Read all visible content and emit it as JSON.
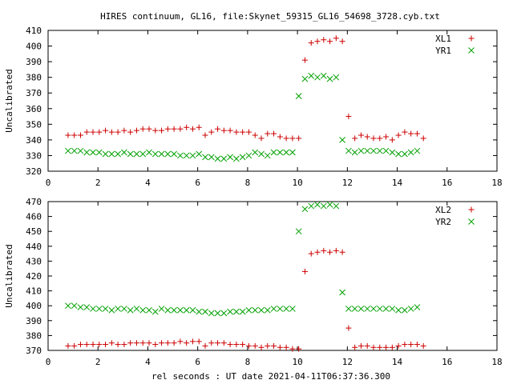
{
  "title": "HIRES continuum, GL16, file:Skynet_59315_GL16_54698_3728.cyb.txt",
  "xlabel": "rel seconds : UT date 2021-04-11T06:37:36.300",
  "chart_data": [
    {
      "type": "scatter",
      "ylabel": "Uncalibrated",
      "xlim": [
        0,
        18
      ],
      "ylim": [
        320,
        410
      ],
      "xticks": [
        0,
        2,
        4,
        6,
        8,
        10,
        12,
        14,
        16,
        18
      ],
      "yticks": [
        320,
        330,
        340,
        350,
        360,
        370,
        380,
        390,
        400,
        410
      ],
      "legend_position": "top-right",
      "x": [
        0.8,
        1.05,
        1.3,
        1.55,
        1.8,
        2.05,
        2.3,
        2.55,
        2.8,
        3.05,
        3.3,
        3.55,
        3.8,
        4.05,
        4.3,
        4.55,
        4.8,
        5.05,
        5.3,
        5.55,
        5.8,
        6.05,
        6.3,
        6.55,
        6.8,
        7.05,
        7.3,
        7.55,
        7.8,
        8.05,
        8.3,
        8.55,
        8.8,
        9.05,
        9.3,
        9.55,
        9.8,
        10.05,
        10.3,
        10.55,
        10.8,
        11.05,
        11.3,
        11.55,
        11.8,
        12.05,
        12.3,
        12.55,
        12.8,
        13.05,
        13.3,
        13.55,
        13.8,
        14.05,
        14.3,
        14.55,
        14.8,
        15.05,
        15.3,
        15.55,
        15.8,
        16.05,
        16.3,
        16.55,
        16.8
      ],
      "series": [
        {
          "name": "XL1",
          "marker": "plus",
          "color": "#cc0000",
          "values": [
            343,
            343,
            343,
            345,
            345,
            345,
            346,
            345,
            345,
            346,
            345,
            346,
            347,
            347,
            346,
            346,
            347,
            347,
            347,
            348,
            347,
            348,
            343,
            345,
            347,
            346,
            346,
            345,
            345,
            345,
            343,
            341,
            344,
            344,
            342,
            341,
            341,
            341,
            391,
            402,
            403,
            404,
            403,
            405,
            403,
            355,
            341,
            343,
            342,
            341,
            341,
            342,
            340,
            343,
            345,
            344,
            344,
            341,
            null,
            null,
            null,
            null,
            null,
            null,
            null
          ]
        },
        {
          "name": "YR1",
          "marker": "cross",
          "color": "#00a000",
          "values": [
            333,
            333,
            333,
            332,
            332,
            332,
            331,
            331,
            331,
            332,
            331,
            331,
            331,
            332,
            331,
            331,
            331,
            331,
            330,
            330,
            330,
            331,
            329,
            329,
            328,
            328,
            329,
            328,
            329,
            330,
            332,
            331,
            330,
            332,
            332,
            332,
            332,
            368,
            379,
            381,
            380,
            381,
            379,
            380,
            340,
            333,
            332,
            333,
            333,
            333,
            333,
            333,
            332,
            331,
            331,
            332,
            333,
            null,
            null,
            null,
            null,
            null,
            null,
            null,
            null
          ]
        }
      ]
    },
    {
      "type": "scatter",
      "ylabel": "Uncalibrated",
      "xlim": [
        0,
        18
      ],
      "ylim": [
        370,
        470
      ],
      "xticks": [
        0,
        2,
        4,
        6,
        8,
        10,
        12,
        14,
        16,
        18
      ],
      "yticks": [
        370,
        380,
        390,
        400,
        410,
        420,
        430,
        440,
        450,
        460,
        470
      ],
      "legend_position": "top-right",
      "x": [
        0.8,
        1.05,
        1.3,
        1.55,
        1.8,
        2.05,
        2.3,
        2.55,
        2.8,
        3.05,
        3.3,
        3.55,
        3.8,
        4.05,
        4.3,
        4.55,
        4.8,
        5.05,
        5.3,
        5.55,
        5.8,
        6.05,
        6.3,
        6.55,
        6.8,
        7.05,
        7.3,
        7.55,
        7.8,
        8.05,
        8.3,
        8.55,
        8.8,
        9.05,
        9.3,
        9.55,
        9.8,
        10.05,
        10.3,
        10.55,
        10.8,
        11.05,
        11.3,
        11.55,
        11.8,
        12.05,
        12.3,
        12.55,
        12.8,
        13.05,
        13.3,
        13.55,
        13.8,
        14.05,
        14.3,
        14.55,
        14.8,
        15.05,
        15.3,
        15.55,
        15.8,
        16.05,
        16.3,
        16.55,
        16.8
      ],
      "series": [
        {
          "name": "XL2",
          "marker": "plus",
          "color": "#cc0000",
          "values": [
            373,
            373,
            374,
            374,
            374,
            374,
            374,
            375,
            374,
            374,
            375,
            375,
            375,
            375,
            374,
            375,
            375,
            375,
            376,
            375,
            376,
            376,
            373,
            375,
            375,
            375,
            374,
            374,
            374,
            373,
            373,
            372,
            373,
            373,
            372,
            372,
            371,
            371,
            423,
            435,
            436,
            437,
            436,
            437,
            436,
            385,
            372,
            373,
            373,
            372,
            372,
            372,
            372,
            373,
            374,
            374,
            374,
            373,
            null,
            null,
            null,
            null,
            null,
            null,
            null
          ]
        },
        {
          "name": "YR2",
          "marker": "cross",
          "color": "#00a000",
          "values": [
            400,
            400,
            399,
            399,
            398,
            398,
            398,
            397,
            398,
            398,
            397,
            398,
            397,
            397,
            396,
            398,
            397,
            397,
            397,
            397,
            397,
            396,
            396,
            395,
            395,
            395,
            396,
            396,
            396,
            397,
            397,
            397,
            397,
            398,
            398,
            398,
            398,
            450,
            465,
            467,
            468,
            467,
            468,
            467,
            409,
            398,
            398,
            398,
            398,
            398,
            398,
            398,
            398,
            397,
            397,
            398,
            399,
            null,
            null,
            null,
            null,
            null,
            null,
            null,
            null
          ]
        }
      ]
    }
  ]
}
